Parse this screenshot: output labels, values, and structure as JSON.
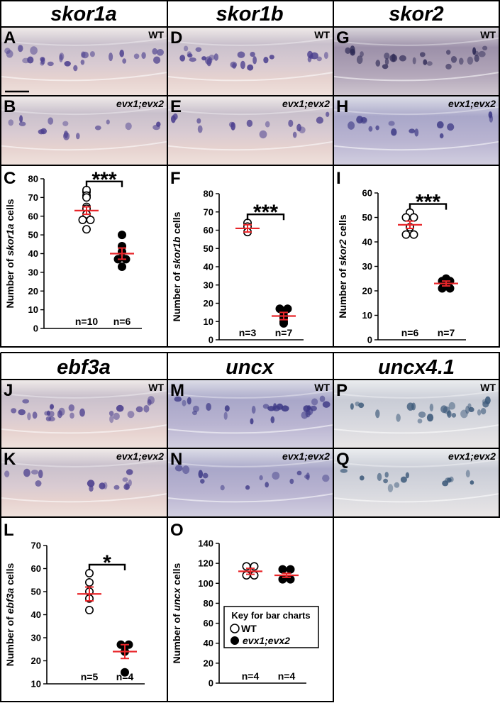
{
  "headers": [
    {
      "id": "skor1a",
      "text": "skor1a"
    },
    {
      "id": "skor1b",
      "text": "skor1b"
    },
    {
      "id": "skor2",
      "text": "skor2"
    },
    {
      "id": "ebf3a",
      "text": "ebf3a"
    },
    {
      "id": "uncx",
      "text": "uncx"
    },
    {
      "id": "uncx41",
      "text": "uncx4.1"
    }
  ],
  "photos": [
    {
      "label": "A",
      "tag": "WT",
      "tone": "pink"
    },
    {
      "label": "D",
      "tag": "WT",
      "tone": "pink"
    },
    {
      "label": "G",
      "tag": "WT",
      "tone": "dark"
    },
    {
      "label": "B",
      "tag": "evx1;evx2",
      "tone": "pink"
    },
    {
      "label": "E",
      "tag": "evx1;evx2",
      "tone": "pink"
    },
    {
      "label": "H",
      "tag": "evx1;evx2",
      "tone": "blue"
    },
    {
      "label": "J",
      "tag": "WT",
      "tone": "pink"
    },
    {
      "label": "M",
      "tag": "WT",
      "tone": "blue"
    },
    {
      "label": "P",
      "tag": "WT",
      "tone": "light"
    },
    {
      "label": "K",
      "tag": "evx1;evx2",
      "tone": "pink"
    },
    {
      "label": "N",
      "tag": "evx1;evx2",
      "tone": "blue"
    },
    {
      "label": "Q",
      "tag": "evx1;evx2",
      "tone": "light"
    }
  ],
  "legend": {
    "title": "Key for bar charts",
    "items": [
      {
        "label": "WT",
        "marker": "open-circle"
      },
      {
        "label": "evx1;evx2",
        "marker": "filled-circle"
      }
    ]
  },
  "colors": {
    "mean_bar": "#e8262a",
    "wt_marker": "#ffffff",
    "mutant_marker": "#000000",
    "frame": "#000000"
  },
  "chart_data": [
    {
      "panel": "C",
      "type": "scatter",
      "ylabel_pre": "Number of ",
      "ylabel_gene": "skor1a",
      "ylabel_post": " cells",
      "ylim": [
        0,
        80
      ],
      "yticks": [
        0,
        10,
        20,
        30,
        40,
        50,
        60,
        70,
        80
      ],
      "series": [
        {
          "name": "WT",
          "n_label": "n=10",
          "mean": 63,
          "sem": 2,
          "values": [
            73,
            74,
            71,
            70,
            65,
            64,
            61,
            58,
            53,
            58
          ]
        },
        {
          "name": "evx1;evx2",
          "n_label": "n=6",
          "mean": 40,
          "sem": 3,
          "values": [
            50,
            44,
            41,
            37,
            37,
            33
          ]
        }
      ],
      "significance": "***"
    },
    {
      "panel": "F",
      "type": "scatter",
      "ylabel_pre": "Number of ",
      "ylabel_gene": "skor1b",
      "ylabel_post": " cells",
      "ylim": [
        0,
        80
      ],
      "yticks": [
        0,
        10,
        20,
        30,
        40,
        50,
        60,
        70,
        80
      ],
      "series": [
        {
          "name": "WT",
          "n_label": "n=3",
          "mean": 61,
          "sem": 2,
          "values": [
            64,
            62,
            59
          ]
        },
        {
          "name": "evx1;evx2",
          "n_label": "n=7",
          "mean": 13,
          "sem": 2,
          "values": [
            17,
            17,
            15,
            13,
            12,
            10,
            9
          ]
        }
      ],
      "significance": "***"
    },
    {
      "panel": "I",
      "type": "scatter",
      "ylabel_pre": "Number of ",
      "ylabel_gene": "skor2",
      "ylabel_post": " cells",
      "ylim": [
        0,
        60
      ],
      "yticks": [
        0,
        10,
        20,
        30,
        40,
        50,
        60
      ],
      "series": [
        {
          "name": "WT",
          "n_label": "n=6",
          "mean": 47,
          "sem": 1.5,
          "values": [
            52,
            50,
            50,
            46,
            43,
            43
          ]
        },
        {
          "name": "evx1;evx2",
          "n_label": "n=7",
          "mean": 23,
          "sem": 1,
          "values": [
            25,
            24,
            24,
            23,
            22,
            21,
            21
          ]
        }
      ],
      "significance": "***"
    },
    {
      "panel": "L",
      "type": "scatter",
      "ylabel_pre": "Number of ",
      "ylabel_gene": "ebf3a",
      "ylabel_post": " cells",
      "ylim": [
        10,
        70
      ],
      "yticks": [
        10,
        20,
        30,
        40,
        50,
        60,
        70
      ],
      "series": [
        {
          "name": "WT",
          "n_label": "n=5",
          "mean": 49,
          "sem": 3,
          "values": [
            58,
            54,
            50,
            47,
            42
          ]
        },
        {
          "name": "evx1;evx2",
          "n_label": "n=4",
          "mean": 24,
          "sem": 3,
          "values": [
            27,
            27,
            24,
            15
          ]
        }
      ],
      "significance": "*"
    },
    {
      "panel": "O",
      "type": "scatter",
      "ylabel_pre": "Number of ",
      "ylabel_gene": "uncx",
      "ylabel_post": " cells",
      "ylim": [
        0,
        140
      ],
      "yticks": [
        0,
        20,
        40,
        60,
        80,
        100,
        120,
        140
      ],
      "series": [
        {
          "name": "WT",
          "n_label": "n=4",
          "mean": 112,
          "sem": 3,
          "values": [
            117,
            117,
            108,
            108
          ]
        },
        {
          "name": "evx1;evx2",
          "n_label": "n=4",
          "mean": 108,
          "sem": 2,
          "values": [
            114,
            114,
            104,
            104
          ]
        }
      ],
      "significance": ""
    }
  ]
}
